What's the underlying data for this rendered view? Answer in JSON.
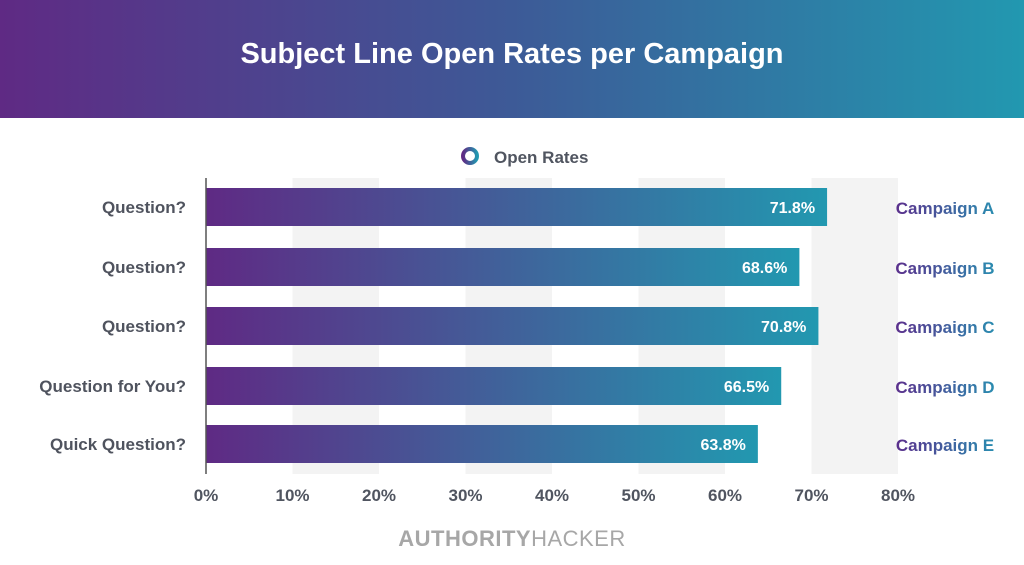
{
  "chart_data": {
    "type": "bar",
    "orientation": "horizontal",
    "title": "Subject Line Open Rates per Campaign",
    "legend": [
      "Open Rates"
    ],
    "legend_placement": "top",
    "categories": [
      "Question?",
      "Question?",
      "Question?",
      "Question for You?",
      "Quick Question?"
    ],
    "campaigns": [
      "Campaign A",
      "Campaign B",
      "Campaign C",
      "Campaign D",
      "Campaign E"
    ],
    "values": [
      71.8,
      68.6,
      70.8,
      66.5,
      63.8
    ],
    "value_labels": [
      "71.8%",
      "68.6%",
      "70.8%",
      "66.5%",
      "63.8%"
    ],
    "xlim": [
      0,
      80
    ],
    "x_ticks": [
      "0%",
      "10%",
      "20%",
      "30%",
      "40%",
      "50%",
      "60%",
      "70%",
      "80%"
    ],
    "colors": {
      "start": "#5f2a84",
      "end": "#2298b0"
    }
  },
  "brand": {
    "bold": "AUTHORITY",
    "light": "HACKER"
  }
}
